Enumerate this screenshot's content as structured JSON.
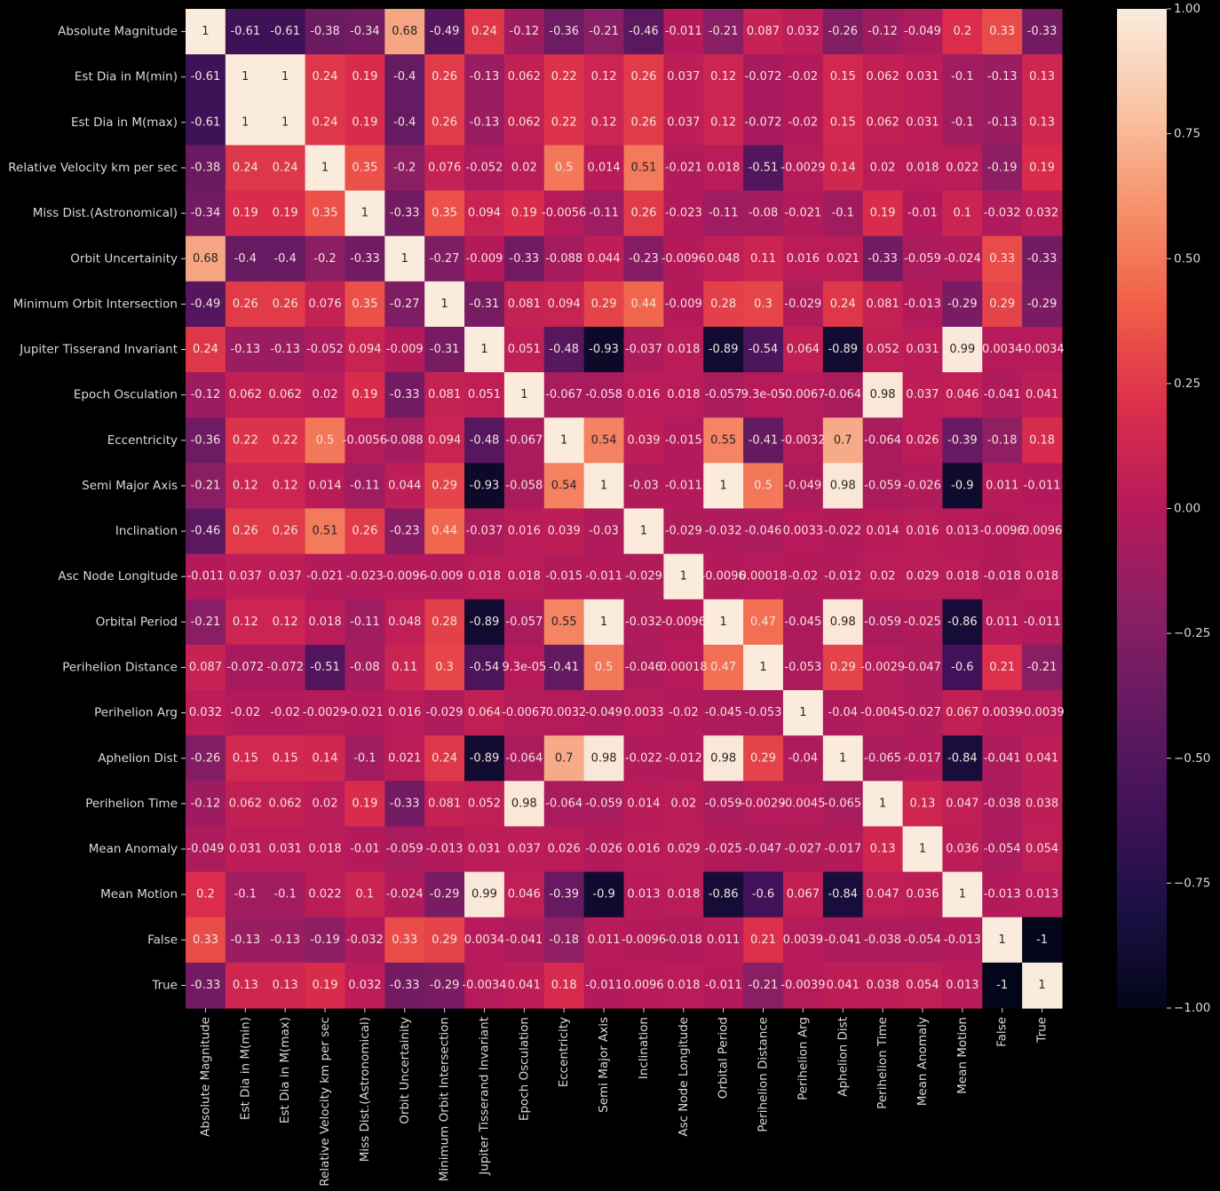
{
  "chart_data": {
    "type": "heatmap",
    "title": "",
    "xlabel": "",
    "ylabel": "",
    "labels": [
      "Absolute Magnitude",
      "Est Dia in M(min)",
      "Est Dia in M(max)",
      "Relative Velocity km per sec",
      "Miss Dist.(Astronomical)",
      "Orbit Uncertainity",
      "Minimum Orbit Intersection",
      "Jupiter Tisserand Invariant",
      "Epoch Osculation",
      "Eccentricity",
      "Semi Major Axis",
      "Inclination",
      "Asc Node Longitude",
      "Orbital Period",
      "Perihelion Distance",
      "Perihelion Arg",
      "Aphelion Dist",
      "Perihelion Time",
      "Mean Anomaly",
      "Mean Motion",
      "False",
      "True"
    ],
    "matrix": [
      [
        1,
        -0.61,
        -0.61,
        -0.38,
        -0.34,
        0.68,
        -0.49,
        0.24,
        -0.12,
        -0.36,
        -0.21,
        -0.46,
        -0.011,
        -0.21,
        0.087,
        0.032,
        -0.26,
        -0.12,
        -0.049,
        0.2,
        0.33,
        -0.33
      ],
      [
        -0.61,
        1,
        1,
        0.24,
        0.19,
        -0.4,
        0.26,
        -0.13,
        0.062,
        0.22,
        0.12,
        0.26,
        0.037,
        0.12,
        -0.072,
        -0.02,
        0.15,
        0.062,
        0.031,
        -0.1,
        -0.13,
        0.13
      ],
      [
        -0.61,
        1,
        1,
        0.24,
        0.19,
        -0.4,
        0.26,
        -0.13,
        0.062,
        0.22,
        0.12,
        0.26,
        0.037,
        0.12,
        -0.072,
        -0.02,
        0.15,
        0.062,
        0.031,
        -0.1,
        -0.13,
        0.13
      ],
      [
        -0.38,
        0.24,
        0.24,
        1,
        0.35,
        -0.2,
        0.076,
        -0.052,
        0.02,
        0.5,
        0.014,
        0.51,
        -0.021,
        0.018,
        -0.51,
        -0.0029,
        0.14,
        0.02,
        0.018,
        0.022,
        -0.19,
        0.19
      ],
      [
        -0.34,
        0.19,
        0.19,
        0.35,
        1,
        -0.33,
        0.35,
        0.094,
        0.19,
        -0.0056,
        -0.11,
        0.26,
        -0.023,
        -0.11,
        -0.08,
        -0.021,
        -0.1,
        0.19,
        -0.01,
        0.1,
        -0.032,
        0.032
      ],
      [
        0.68,
        -0.4,
        -0.4,
        -0.2,
        -0.33,
        1,
        -0.27,
        -0.009,
        -0.33,
        -0.088,
        0.044,
        -0.23,
        -0.0096,
        0.048,
        0.11,
        0.016,
        0.021,
        -0.33,
        -0.059,
        -0.024,
        0.33,
        -0.33
      ],
      [
        -0.49,
        0.26,
        0.26,
        0.076,
        0.35,
        -0.27,
        1,
        -0.31,
        0.081,
        0.094,
        0.29,
        0.44,
        -0.009,
        0.28,
        0.3,
        -0.029,
        0.24,
        0.081,
        -0.013,
        -0.29,
        0.29,
        -0.29
      ],
      [
        0.24,
        -0.13,
        -0.13,
        -0.052,
        0.094,
        -0.009,
        -0.31,
        1,
        0.051,
        -0.48,
        -0.93,
        -0.037,
        0.018,
        -0.89,
        -0.54,
        0.064,
        -0.89,
        0.052,
        0.031,
        0.99,
        0.0034,
        -0.0034
      ],
      [
        -0.12,
        0.062,
        0.062,
        0.02,
        0.19,
        -0.33,
        0.081,
        0.051,
        1,
        -0.067,
        -0.058,
        0.016,
        0.018,
        -0.057,
        9.3e-05,
        -0.0067,
        -0.064,
        0.98,
        0.037,
        0.046,
        -0.041,
        0.041
      ],
      [
        -0.36,
        0.22,
        0.22,
        0.5,
        -0.0056,
        -0.088,
        0.094,
        -0.48,
        -0.067,
        1,
        0.54,
        0.039,
        -0.015,
        0.55,
        -0.41,
        -0.0032,
        0.7,
        -0.064,
        0.026,
        -0.39,
        -0.18,
        0.18
      ],
      [
        -0.21,
        0.12,
        0.12,
        0.014,
        -0.11,
        0.044,
        0.29,
        -0.93,
        -0.058,
        0.54,
        1,
        -0.03,
        -0.011,
        1,
        0.5,
        -0.049,
        0.98,
        -0.059,
        -0.026,
        -0.9,
        0.011,
        -0.011
      ],
      [
        -0.46,
        0.26,
        0.26,
        0.51,
        0.26,
        -0.23,
        0.44,
        -0.037,
        0.016,
        0.039,
        -0.03,
        1,
        -0.029,
        -0.032,
        -0.046,
        0.0033,
        -0.022,
        0.014,
        0.016,
        0.013,
        -0.0096,
        0.0096
      ],
      [
        -0.011,
        0.037,
        0.037,
        -0.021,
        -0.023,
        -0.0096,
        -0.009,
        0.018,
        0.018,
        -0.015,
        -0.011,
        -0.029,
        1,
        -0.0096,
        0.00018,
        -0.02,
        -0.012,
        0.02,
        0.029,
        0.018,
        -0.018,
        0.018
      ],
      [
        -0.21,
        0.12,
        0.12,
        0.018,
        -0.11,
        0.048,
        0.28,
        -0.89,
        -0.057,
        0.55,
        1,
        -0.032,
        -0.0096,
        1,
        0.47,
        -0.045,
        0.98,
        -0.059,
        -0.025,
        -0.86,
        0.011,
        -0.011
      ],
      [
        0.087,
        -0.072,
        -0.072,
        -0.51,
        -0.08,
        0.11,
        0.3,
        -0.54,
        9.3e-05,
        -0.41,
        0.5,
        -0.046,
        0.00018,
        0.47,
        1,
        -0.053,
        0.29,
        -0.0029,
        -0.047,
        -0.6,
        0.21,
        -0.21
      ],
      [
        0.032,
        -0.02,
        -0.02,
        -0.0029,
        -0.021,
        0.016,
        -0.029,
        0.064,
        -0.0067,
        -0.0032,
        -0.049,
        0.0033,
        -0.02,
        -0.045,
        -0.053,
        1,
        -0.04,
        -0.0045,
        -0.027,
        0.067,
        0.0039,
        -0.0039
      ],
      [
        -0.26,
        0.15,
        0.15,
        0.14,
        -0.1,
        0.021,
        0.24,
        -0.89,
        -0.064,
        0.7,
        0.98,
        -0.022,
        -0.012,
        0.98,
        0.29,
        -0.04,
        1,
        -0.065,
        -0.017,
        -0.84,
        -0.041,
        0.041
      ],
      [
        -0.12,
        0.062,
        0.062,
        0.02,
        0.19,
        -0.33,
        0.081,
        0.052,
        0.98,
        -0.064,
        -0.059,
        0.014,
        0.02,
        -0.059,
        -0.0029,
        -0.0045,
        -0.065,
        1,
        0.13,
        0.047,
        -0.038,
        0.038
      ],
      [
        -0.049,
        0.031,
        0.031,
        0.018,
        -0.01,
        -0.059,
        -0.013,
        0.031,
        0.037,
        0.026,
        -0.026,
        0.016,
        0.029,
        -0.025,
        -0.047,
        -0.027,
        -0.017,
        0.13,
        1,
        0.036,
        -0.054,
        0.054
      ],
      [
        0.2,
        -0.1,
        -0.1,
        0.022,
        0.1,
        -0.024,
        -0.29,
        0.99,
        0.046,
        -0.39,
        -0.9,
        0.013,
        0.018,
        -0.86,
        -0.6,
        0.067,
        -0.84,
        0.047,
        0.036,
        1,
        -0.013,
        0.013
      ],
      [
        0.33,
        -0.13,
        -0.13,
        -0.19,
        -0.032,
        0.33,
        0.29,
        0.0034,
        -0.041,
        -0.18,
        0.011,
        -0.0096,
        -0.018,
        0.011,
        0.21,
        0.0039,
        -0.041,
        -0.038,
        -0.054,
        -0.013,
        1,
        -1
      ],
      [
        -0.33,
        0.13,
        0.13,
        0.19,
        0.032,
        -0.33,
        -0.29,
        -0.0034,
        0.041,
        0.18,
        -0.011,
        0.0096,
        0.018,
        -0.011,
        -0.21,
        -0.0039,
        0.041,
        0.038,
        0.054,
        0.013,
        -1,
        1
      ]
    ],
    "vmin": -1,
    "vmax": 1,
    "colormap": "rocket",
    "annotations": true,
    "colorbar": {
      "placement": "right",
      "ticks": [
        1.0,
        0.75,
        0.5,
        0.25,
        0.0,
        -0.25,
        -0.5,
        -0.75,
        -1.0
      ],
      "tick_labels": [
        "1.00",
        "0.75",
        "0.50",
        "0.25",
        "0.00",
        "−0.25",
        "−0.50",
        "−0.75",
        "−1.00"
      ]
    },
    "colors": {
      "background": "#000000",
      "text_light": "#f2e4dc",
      "text_dark": "#262626",
      "axis_text": "#d9d9d9"
    }
  }
}
